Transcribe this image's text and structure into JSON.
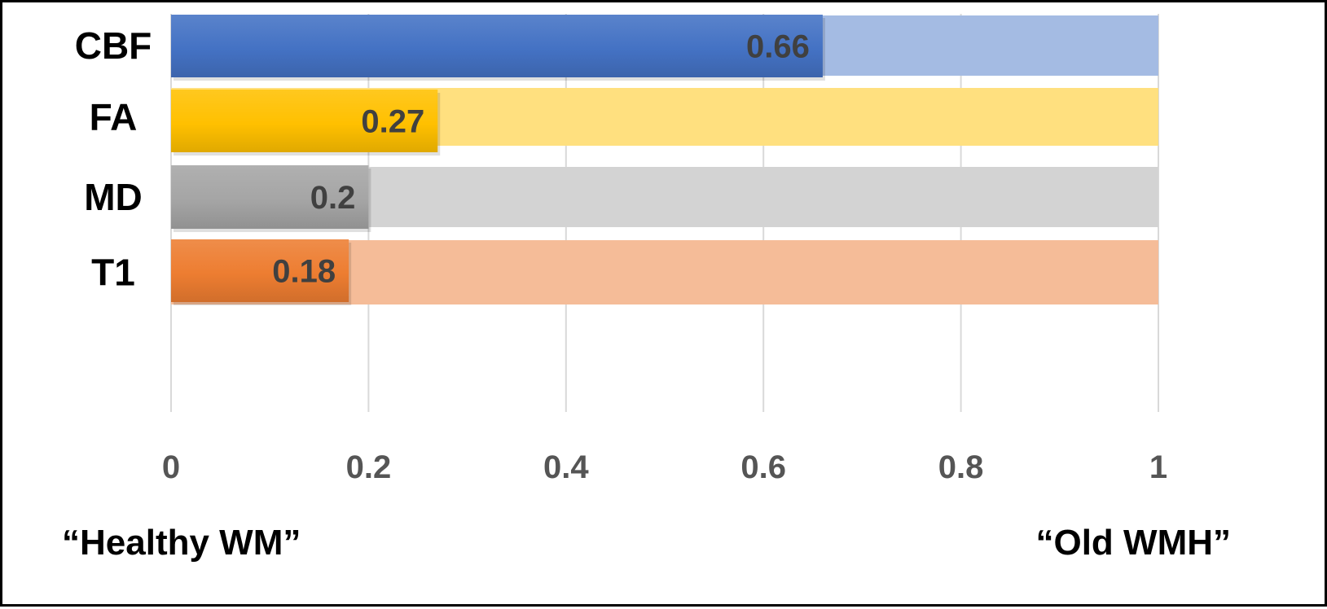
{
  "chart_data": {
    "type": "bar",
    "orientation": "horizontal",
    "categories": [
      "CBF",
      "FA",
      "MD",
      "T1"
    ],
    "values": [
      0.66,
      0.27,
      0.2,
      0.18
    ],
    "max_values": [
      1,
      1,
      1,
      1
    ],
    "data_labels": [
      "0.66",
      "0.27",
      "0.2",
      "0.18"
    ],
    "xlim": [
      0,
      1
    ],
    "xticks": [
      0,
      0.2,
      0.4,
      0.6,
      0.8,
      1
    ],
    "xtick_labels": [
      "0",
      "0.2",
      "0.4",
      "0.6",
      "0.8",
      "1"
    ],
    "grid": "vertical",
    "colors": [
      "#4472C4",
      "#FFC000",
      "#A5A5A5",
      "#ED7D31"
    ],
    "background_colors": [
      "#A4BBE3",
      "#FFE07F",
      "#D3D3D3",
      "#F5BC98"
    ],
    "left_end_label": "“Healthy WM”",
    "right_end_label": "“Old WMH”",
    "title": "",
    "xlabel": "",
    "ylabel": ""
  }
}
